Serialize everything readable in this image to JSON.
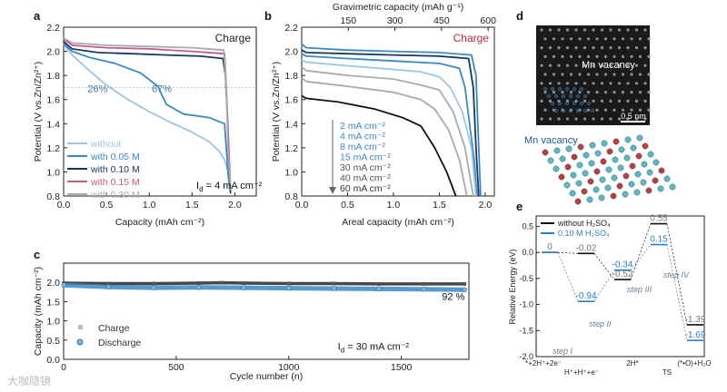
{
  "figure": {
    "panel_letters": [
      "a",
      "b",
      "c",
      "d",
      "e"
    ],
    "watermark": "大咖隐镜"
  },
  "colors": {
    "without": "#9ec5e6",
    "m005": "#3a88c4",
    "m010": "#163a5c",
    "m015": "#c45a8a",
    "m030": "#aaaaaa",
    "accent_red": "#b22a3a",
    "annot_blue": "#3a7aaa",
    "path_blue": "#2f7fc1",
    "path_black": "#111111"
  },
  "chart_data": [
    {
      "panel": "a",
      "type": "line",
      "title": "",
      "annotation_tag": "Charge",
      "xlabel": "Capacity (mAh cm⁻²)",
      "ylabel": "Potential (V vs.Zn/Zn²⁺)",
      "xlim": [
        0,
        2.25
      ],
      "ylim": [
        0.8,
        2.2
      ],
      "xticks": [
        "0.0",
        "0.5",
        "1.0",
        "1.5",
        "2.0"
      ],
      "yticks": [
        "0.8",
        "1.0",
        "1.2",
        "1.4",
        "1.6",
        "1.8",
        "2.0",
        "2.2"
      ],
      "reference_line_y": 1.7,
      "annotations": [
        {
          "text": "26%",
          "x": 0.28,
          "y": 1.66
        },
        {
          "text": "67%",
          "x": 1.03,
          "y": 1.66
        },
        {
          "text": "I",
          "sub": "d",
          "rest": " = 4 mA cm⁻²",
          "x": 1.55,
          "y": 0.86
        }
      ],
      "series": [
        {
          "name": "without",
          "color_key": "without",
          "x": [
            0,
            0.1,
            0.3,
            0.5,
            0.75,
            1.0,
            1.25,
            1.5,
            1.7,
            1.82,
            1.88,
            1.92,
            1.94
          ],
          "y": [
            2.06,
            1.97,
            1.84,
            1.72,
            1.6,
            1.5,
            1.41,
            1.33,
            1.25,
            1.17,
            1.1,
            1.0,
            0.88
          ]
        },
        {
          "name": "with 0.05 M",
          "color_key": "m005",
          "x": [
            0,
            0.1,
            0.3,
            0.6,
            0.9,
            1.1,
            1.2,
            1.4,
            1.7,
            1.88,
            1.9,
            1.92,
            1.94
          ],
          "y": [
            2.06,
            2.0,
            1.95,
            1.9,
            1.82,
            1.71,
            1.56,
            1.48,
            1.45,
            1.4,
            1.2,
            1.0,
            0.85
          ]
        },
        {
          "name": "with 0.10 M",
          "color_key": "m010",
          "x": [
            0,
            0.1,
            0.4,
            0.8,
            1.2,
            1.6,
            1.86,
            1.89,
            1.91,
            1.93,
            1.95
          ],
          "y": [
            2.08,
            2.02,
            1.99,
            1.98,
            1.97,
            1.96,
            1.94,
            1.8,
            1.5,
            1.1,
            0.82
          ]
        },
        {
          "name": "with 0.15 M",
          "color_key": "m015",
          "x": [
            0,
            0.1,
            0.5,
            1.0,
            1.5,
            1.88,
            1.9,
            1.93,
            1.95
          ],
          "y": [
            2.1,
            2.05,
            2.03,
            2.02,
            2.0,
            1.98,
            1.7,
            1.2,
            0.85
          ]
        },
        {
          "name": "with 0.30 M",
          "color_key": "m030",
          "x": [
            0,
            0.1,
            0.5,
            1.0,
            1.5,
            1.87,
            1.9,
            1.92,
            1.95
          ],
          "y": [
            2.11,
            2.07,
            2.05,
            2.04,
            2.03,
            2.01,
            1.7,
            1.2,
            0.85
          ]
        }
      ]
    },
    {
      "panel": "b",
      "type": "line",
      "title": "",
      "annotation_tag": "Charge",
      "xlabel": "Areal capacity (mAh cm⁻²)",
      "x2label": "Gravimetric capacity (mAh g⁻¹)",
      "x2ticks": [
        "150",
        "300",
        "450",
        "600"
      ],
      "ylabel": "Potential (V vs.Zn/Zn²⁺)",
      "xlim": [
        0,
        2.1
      ],
      "ylim": [
        0.8,
        2.2
      ],
      "xticks": [
        "0.0",
        "0.5",
        "1.0",
        "1.5",
        "2.0"
      ],
      "yticks": [
        "0.8",
        "1.0",
        "1.2",
        "1.4",
        "1.6",
        "1.8",
        "2.0",
        "2.2"
      ],
      "series": [
        {
          "name": "2 mA cm⁻²",
          "color_key": "m005",
          "x": [
            0,
            0.05,
            0.5,
            1.0,
            1.5,
            1.85,
            1.9,
            1.93,
            1.95
          ],
          "y": [
            2.06,
            2.03,
            2.01,
            2.0,
            1.99,
            1.97,
            1.8,
            1.2,
            0.8
          ]
        },
        {
          "name": "4 mA cm⁻²",
          "color_key": "m010",
          "x": [
            0,
            0.05,
            0.5,
            1.0,
            1.5,
            1.82,
            1.87,
            1.9,
            1.93
          ],
          "y": [
            2.01,
            1.99,
            1.98,
            1.97,
            1.96,
            1.94,
            1.7,
            1.2,
            0.8
          ]
        },
        {
          "name": "8 mA cm⁻²",
          "color_key": "m005",
          "x": [
            0,
            0.05,
            0.5,
            1.0,
            1.5,
            1.72,
            1.78,
            1.83,
            1.88,
            1.91
          ],
          "y": [
            1.98,
            1.96,
            1.94,
            1.92,
            1.9,
            1.86,
            1.7,
            1.4,
            1.1,
            0.8
          ]
        },
        {
          "name": "15 mA cm⁻²",
          "color_key": "without",
          "x": [
            0,
            0.05,
            0.5,
            1.0,
            1.3,
            1.5,
            1.62,
            1.75,
            1.85,
            1.9
          ],
          "y": [
            1.93,
            1.91,
            1.88,
            1.85,
            1.83,
            1.79,
            1.7,
            1.5,
            1.2,
            0.8
          ]
        },
        {
          "name": "30 mA cm⁻²",
          "color_key": "m030",
          "x": [
            0,
            0.05,
            0.5,
            1.0,
            1.3,
            1.5,
            1.65,
            1.78,
            1.87
          ],
          "y": [
            1.87,
            1.84,
            1.8,
            1.77,
            1.72,
            1.68,
            1.5,
            1.2,
            0.8
          ]
        },
        {
          "name": "40 mA cm⁻²",
          "color_key": "m030",
          "x": [
            0,
            0.05,
            0.5,
            1.0,
            1.3,
            1.45,
            1.6,
            1.72,
            1.8
          ],
          "y": [
            1.78,
            1.75,
            1.71,
            1.66,
            1.6,
            1.52,
            1.35,
            1.1,
            0.8
          ]
        },
        {
          "name": "60 mA cm⁻²",
          "color_key": "path_black",
          "x": [
            0,
            0.05,
            0.4,
            0.8,
            1.1,
            1.3,
            1.45,
            1.58,
            1.68
          ],
          "y": [
            1.63,
            1.61,
            1.58,
            1.52,
            1.45,
            1.38,
            1.2,
            1.0,
            0.8
          ]
        }
      ]
    },
    {
      "panel": "c",
      "type": "scatter",
      "title": "",
      "xlabel": "Cycle number (n)",
      "ylabel": "Capacity (mAh cm⁻²)",
      "xlim": [
        0,
        1800
      ],
      "ylim": [
        0,
        2.5
      ],
      "xticks": [
        "0",
        "500",
        "1000",
        "1500"
      ],
      "yticks": [
        "0.0",
        "0.5",
        "1.0",
        "1.5",
        "2.0"
      ],
      "annotations": [
        {
          "text": "92 %",
          "x": 1680,
          "y": 1.55
        },
        {
          "text": "I",
          "sub": "d",
          "rest": " = 30 mA cm⁻²",
          "x": 1500,
          "y": 0.25
        }
      ],
      "series": [
        {
          "name": "Charge",
          "marker": "square",
          "color_key": "path_black",
          "x": [
            1,
            200,
            400,
            600,
            700,
            800,
            1000,
            1200,
            1400,
            1600,
            1780
          ],
          "y": [
            1.98,
            1.97,
            1.97,
            1.98,
            1.99,
            1.98,
            1.97,
            1.97,
            1.96,
            1.96,
            1.96
          ]
        },
        {
          "name": "Discharge",
          "marker": "circle",
          "color_key": "m005",
          "x": [
            1,
            200,
            400,
            600,
            800,
            1000,
            1200,
            1400,
            1600,
            1780
          ],
          "y": [
            1.93,
            1.88,
            1.86,
            1.87,
            1.86,
            1.85,
            1.84,
            1.83,
            1.82,
            1.81
          ]
        }
      ]
    },
    {
      "panel": "e",
      "type": "line",
      "title": "",
      "xlabel": "",
      "ylabel": "Relative Energy (eV)",
      "ylim": [
        -2.0,
        0.7
      ],
      "yticks": [
        "0.5",
        "0.0",
        "-0.5",
        "-1.0",
        "-1.5",
        "-2.0"
      ],
      "categories": [
        "*+2H⁺+2e⁻",
        "H⁺+H⁺+e⁻",
        "2H*",
        "TS",
        "(*•O)+H₂O"
      ],
      "series": [
        {
          "name": "without H₂SO₄",
          "color_key": "path_black",
          "levels": [
            {
              "x": 0,
              "y": 0.0,
              "label": "0"
            },
            {
              "x": 1,
              "y": -0.02,
              "label": "-0.02"
            },
            {
              "x": 2,
              "y": -0.52,
              "label": "-0.52"
            },
            {
              "x": 3,
              "y": 0.55,
              "label": "0.55"
            },
            {
              "x": 4,
              "y": -1.39,
              "label": "-1.39"
            }
          ]
        },
        {
          "name": "0.10 M H₂SO₄",
          "color_key": "path_blue",
          "levels": [
            {
              "x": 0,
              "y": 0.0,
              "label": ""
            },
            {
              "x": 1,
              "y": -0.94,
              "label": "-0.94"
            },
            {
              "x": 2,
              "y": -0.34,
              "label": "-0.34"
            },
            {
              "x": 3,
              "y": 0.15,
              "label": "0.15"
            },
            {
              "x": 4,
              "y": -1.69,
              "label": "-1.69"
            }
          ]
        }
      ],
      "step_labels": [
        "step I",
        "step II",
        "step III",
        "step IV"
      ]
    }
  ],
  "panel_d": {
    "tem_label": "Mn vacancy",
    "scale_bar": "0.5 nm",
    "model_label": "Mn vacancy"
  }
}
